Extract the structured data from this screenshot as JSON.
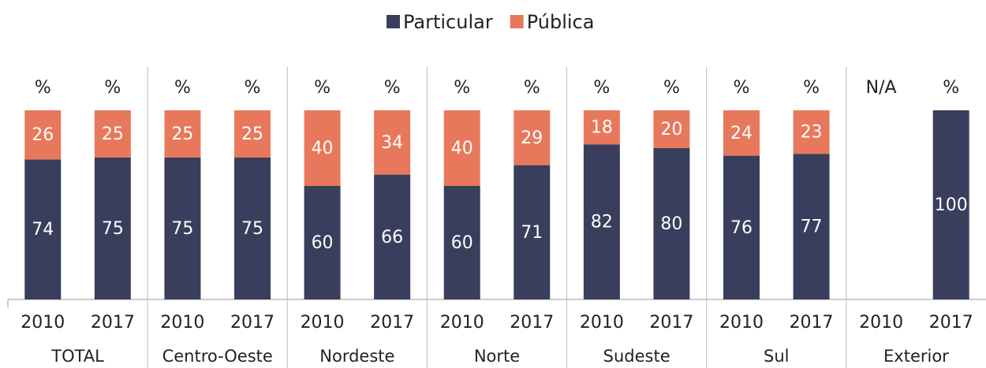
{
  "chart_data": {
    "type": "stacked-bar",
    "categories": [
      "2010",
      "2017",
      "2010",
      "2017",
      "2010",
      "2017",
      "2010",
      "2017",
      "2010",
      "2017",
      "2010",
      "2017",
      "2010",
      "2017"
    ],
    "groups": [
      "TOTAL",
      "Centro-Oeste",
      "Nordeste",
      "Norte",
      "Sudeste",
      "Sul",
      "Exterior"
    ],
    "top_labels": [
      "%",
      "%",
      "%",
      "%",
      "%",
      "%",
      "%",
      "%",
      "%",
      "%",
      "%",
      "%",
      "N/A",
      "%"
    ],
    "series": [
      {
        "name": "Particular",
        "color": "#393e5c",
        "values": [
          74,
          75,
          75,
          75,
          60,
          66,
          60,
          71,
          82,
          80,
          76,
          77,
          null,
          100
        ]
      },
      {
        "name": "Pública",
        "color": "#e8785b",
        "values": [
          26,
          25,
          25,
          25,
          40,
          34,
          40,
          29,
          18,
          20,
          24,
          23,
          null,
          null
        ]
      }
    ],
    "ylim": [
      0,
      100
    ]
  }
}
